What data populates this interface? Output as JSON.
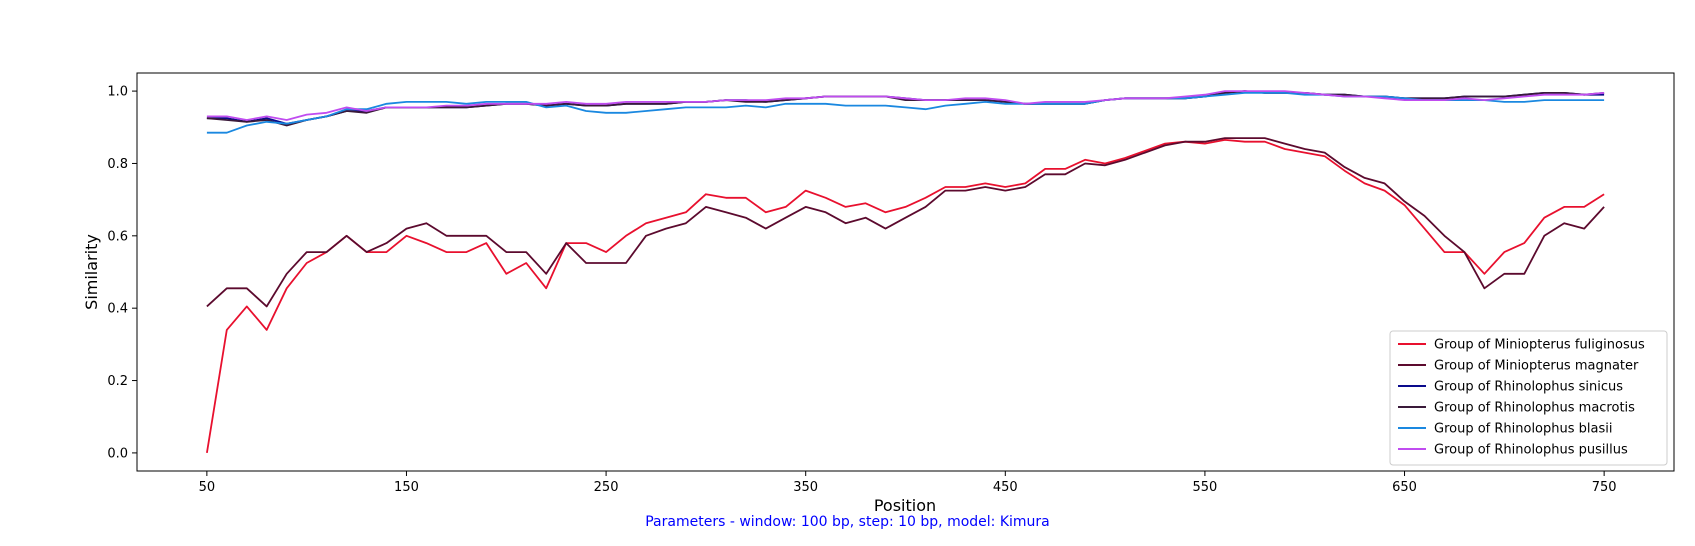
{
  "chart_data": {
    "type": "line",
    "title": "",
    "xlabel": "Position",
    "ylabel": "Similarity",
    "xlim": [
      15,
      785
    ],
    "ylim": [
      -0.05,
      1.05
    ],
    "x_ticks": [
      50,
      150,
      250,
      350,
      450,
      550,
      650,
      750
    ],
    "y_ticks": [
      0.0,
      0.2,
      0.4,
      0.6,
      0.8,
      1.0
    ],
    "y_tick_labels": [
      "0.0",
      "0.2",
      "0.4",
      "0.6",
      "0.8",
      "1.0"
    ],
    "grid": false,
    "legend_position": "lower-right",
    "x": [
      50,
      60,
      70,
      80,
      90,
      100,
      110,
      120,
      130,
      140,
      150,
      160,
      170,
      180,
      190,
      200,
      210,
      220,
      230,
      240,
      250,
      260,
      270,
      280,
      290,
      300,
      310,
      320,
      330,
      340,
      350,
      360,
      370,
      380,
      390,
      400,
      410,
      420,
      430,
      440,
      450,
      460,
      470,
      480,
      490,
      500,
      510,
      520,
      530,
      540,
      550,
      560,
      570,
      580,
      590,
      600,
      610,
      620,
      630,
      640,
      650,
      660,
      670,
      680,
      690,
      700,
      710,
      720,
      730,
      740,
      750
    ],
    "series": [
      {
        "name": "Group of Miniopterus fuliginosus",
        "color": "#e8102e",
        "values": [
          0.0,
          0.34,
          0.405,
          0.34,
          0.455,
          0.525,
          0.555,
          0.6,
          0.555,
          0.555,
          0.6,
          0.58,
          0.555,
          0.555,
          0.58,
          0.495,
          0.525,
          0.455,
          0.58,
          0.58,
          0.555,
          0.6,
          0.635,
          0.65,
          0.665,
          0.715,
          0.705,
          0.705,
          0.665,
          0.68,
          0.725,
          0.705,
          0.68,
          0.69,
          0.665,
          0.68,
          0.705,
          0.735,
          0.735,
          0.745,
          0.735,
          0.745,
          0.785,
          0.785,
          0.81,
          0.8,
          0.815,
          0.835,
          0.855,
          0.86,
          0.855,
          0.865,
          0.86,
          0.86,
          0.84,
          0.83,
          0.82,
          0.78,
          0.745,
          0.725,
          0.685,
          0.62,
          0.555,
          0.555,
          0.495,
          0.555,
          0.58,
          0.65,
          0.68,
          0.68,
          0.715
        ]
      },
      {
        "name": "Group of Miniopterus magnater",
        "color": "#5c0a2e",
        "values": [
          0.405,
          0.455,
          0.455,
          0.405,
          0.495,
          0.555,
          0.555,
          0.6,
          0.555,
          0.58,
          0.62,
          0.635,
          0.6,
          0.6,
          0.6,
          0.555,
          0.555,
          0.495,
          0.58,
          0.525,
          0.525,
          0.525,
          0.6,
          0.62,
          0.635,
          0.68,
          0.665,
          0.65,
          0.62,
          0.65,
          0.68,
          0.665,
          0.635,
          0.65,
          0.62,
          0.65,
          0.68,
          0.725,
          0.725,
          0.735,
          0.725,
          0.735,
          0.77,
          0.77,
          0.8,
          0.795,
          0.81,
          0.83,
          0.85,
          0.86,
          0.86,
          0.87,
          0.87,
          0.87,
          0.855,
          0.84,
          0.83,
          0.79,
          0.76,
          0.745,
          0.695,
          0.655,
          0.6,
          0.555,
          0.455,
          0.495,
          0.495,
          0.6,
          0.635,
          0.62,
          0.68
        ]
      },
      {
        "name": "Group of Rhinolophus sinicus",
        "color": "#0a0a8c",
        "values": [
          0.925,
          0.925,
          0.915,
          0.925,
          0.91,
          0.92,
          0.93,
          0.945,
          0.945,
          0.955,
          0.955,
          0.955,
          0.955,
          0.955,
          0.96,
          0.965,
          0.965,
          0.96,
          0.965,
          0.96,
          0.96,
          0.965,
          0.965,
          0.965,
          0.97,
          0.97,
          0.975,
          0.975,
          0.97,
          0.975,
          0.98,
          0.985,
          0.985,
          0.985,
          0.985,
          0.98,
          0.975,
          0.975,
          0.975,
          0.975,
          0.97,
          0.965,
          0.965,
          0.965,
          0.965,
          0.975,
          0.98,
          0.98,
          0.98,
          0.98,
          0.985,
          0.995,
          1.0,
          0.995,
          0.995,
          0.995,
          0.99,
          0.99,
          0.985,
          0.985,
          0.98,
          0.98,
          0.98,
          0.985,
          0.985,
          0.985,
          0.99,
          0.995,
          0.995,
          0.99,
          0.99
        ]
      },
      {
        "name": "Group of Rhinolophus macrotis",
        "color": "#3a1a3a",
        "values": [
          0.925,
          0.92,
          0.915,
          0.92,
          0.905,
          0.92,
          0.93,
          0.945,
          0.94,
          0.955,
          0.955,
          0.955,
          0.955,
          0.955,
          0.96,
          0.965,
          0.965,
          0.96,
          0.965,
          0.96,
          0.96,
          0.965,
          0.965,
          0.965,
          0.97,
          0.97,
          0.975,
          0.97,
          0.97,
          0.975,
          0.98,
          0.985,
          0.985,
          0.985,
          0.985,
          0.975,
          0.975,
          0.975,
          0.975,
          0.975,
          0.97,
          0.965,
          0.965,
          0.965,
          0.965,
          0.975,
          0.98,
          0.98,
          0.98,
          0.98,
          0.985,
          0.995,
          1.0,
          0.995,
          0.995,
          0.995,
          0.99,
          0.99,
          0.985,
          0.985,
          0.98,
          0.98,
          0.98,
          0.985,
          0.985,
          0.985,
          0.99,
          0.995,
          0.995,
          0.99,
          0.995
        ]
      },
      {
        "name": "Group of Rhinolophus blasii",
        "color": "#1a88e0",
        "values": [
          0.885,
          0.885,
          0.905,
          0.915,
          0.91,
          0.92,
          0.93,
          0.95,
          0.95,
          0.965,
          0.97,
          0.97,
          0.97,
          0.965,
          0.97,
          0.97,
          0.97,
          0.955,
          0.96,
          0.945,
          0.94,
          0.94,
          0.945,
          0.95,
          0.955,
          0.955,
          0.955,
          0.96,
          0.955,
          0.965,
          0.965,
          0.965,
          0.96,
          0.96,
          0.96,
          0.955,
          0.95,
          0.96,
          0.965,
          0.97,
          0.965,
          0.965,
          0.965,
          0.965,
          0.965,
          0.975,
          0.98,
          0.98,
          0.98,
          0.98,
          0.985,
          0.99,
          0.995,
          0.995,
          0.995,
          0.99,
          0.99,
          0.985,
          0.985,
          0.985,
          0.98,
          0.975,
          0.975,
          0.975,
          0.975,
          0.97,
          0.97,
          0.975,
          0.975,
          0.975,
          0.975
        ]
      },
      {
        "name": "Group of Rhinolophus pusillus",
        "color": "#c04cf0",
        "values": [
          0.93,
          0.93,
          0.92,
          0.93,
          0.92,
          0.935,
          0.94,
          0.955,
          0.945,
          0.955,
          0.955,
          0.955,
          0.96,
          0.96,
          0.965,
          0.965,
          0.965,
          0.965,
          0.97,
          0.965,
          0.965,
          0.97,
          0.97,
          0.97,
          0.97,
          0.97,
          0.975,
          0.975,
          0.975,
          0.98,
          0.98,
          0.985,
          0.985,
          0.985,
          0.985,
          0.98,
          0.975,
          0.975,
          0.98,
          0.98,
          0.975,
          0.965,
          0.97,
          0.97,
          0.97,
          0.975,
          0.98,
          0.98,
          0.98,
          0.985,
          0.99,
          1.0,
          1.0,
          1.0,
          1.0,
          0.995,
          0.99,
          0.985,
          0.985,
          0.98,
          0.975,
          0.975,
          0.975,
          0.98,
          0.975,
          0.98,
          0.985,
          0.99,
          0.99,
          0.99,
          0.995
        ]
      }
    ]
  },
  "footer": {
    "parameters_text": "Parameters - window: 100 bp, step: 10 bp, model: Kimura",
    "parameters_color": "#0000ff"
  }
}
